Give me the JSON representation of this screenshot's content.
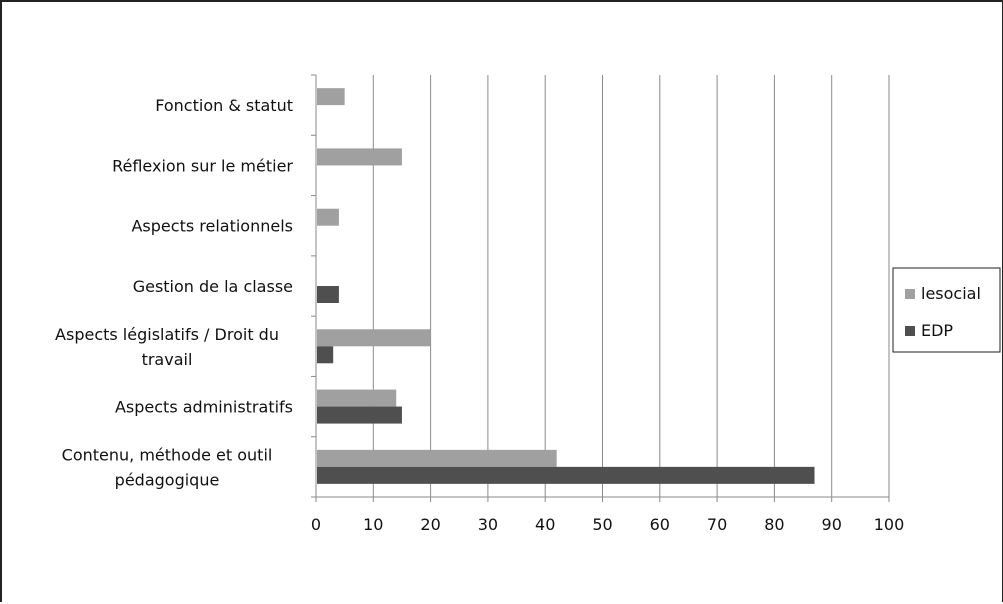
{
  "chart_data": {
    "type": "bar",
    "orientation": "horizontal",
    "categories": [
      "Fonction & statut",
      "Réflexion sur le métier",
      "Aspects relationnels",
      "Gestion de la classe",
      "Aspects législatifs / Droit du travail",
      "Aspects administratifs",
      "Contenu, méthode et outil pédagogique"
    ],
    "category_lines": [
      [
        "Fonction & statut"
      ],
      [
        "Réflexion sur le métier"
      ],
      [
        "Aspects relationnels"
      ],
      [
        "Gestion de la classe"
      ],
      [
        "Aspects législatifs / Droit du",
        "travail"
      ],
      [
        "Aspects administratifs"
      ],
      [
        "Contenu, méthode et outil",
        "pédagogique"
      ]
    ],
    "series": [
      {
        "name": "lesocial",
        "color": "#a0a0a0",
        "values": [
          5,
          15,
          4,
          0,
          20,
          14,
          42
        ]
      },
      {
        "name": "EDP",
        "color": "#4f4f4f",
        "values": [
          0,
          0,
          0,
          4,
          3,
          15,
          87
        ]
      }
    ],
    "xlim": [
      0,
      100
    ],
    "x_ticks": [
      "0",
      "10",
      "20",
      "30",
      "40",
      "50",
      "60",
      "70",
      "80",
      "90",
      "100"
    ],
    "grid": "vertical",
    "legend_position": "right",
    "title": "",
    "xlabel": "",
    "ylabel": ""
  }
}
